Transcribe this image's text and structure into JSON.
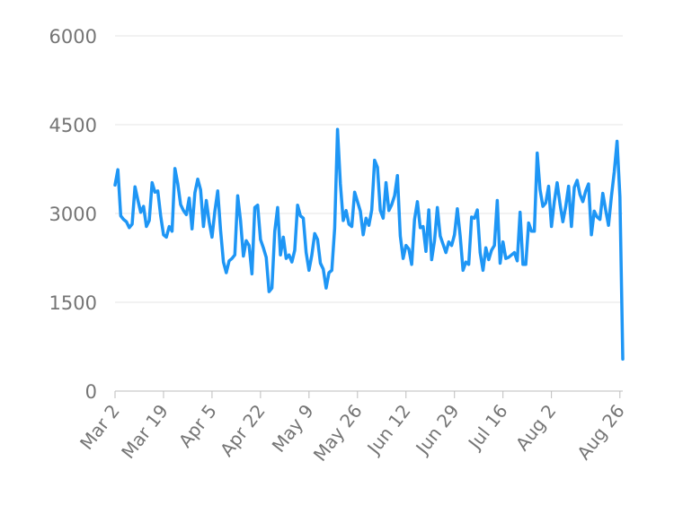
{
  "chart_data": {
    "type": "line",
    "title": "",
    "xlabel": "",
    "ylabel": "",
    "ylim": [
      0,
      6000
    ],
    "grid": true,
    "legend": "none",
    "colors": {
      "line": "#1e96f5",
      "grid": "#e6e6e6",
      "axis": "#bdbdbd",
      "text": "#757575"
    },
    "yticks": [
      0,
      1500,
      3000,
      4500,
      6000
    ],
    "ytick_labels": [
      "0",
      "1500",
      "3000",
      "4500",
      "6000"
    ],
    "xticks": [
      {
        "label": "Mar 2",
        "index": 0
      },
      {
        "label": "Mar 19",
        "index": 17
      },
      {
        "label": "Apr 5",
        "index": 34
      },
      {
        "label": "Apr 22",
        "index": 51
      },
      {
        "label": "May 9",
        "index": 68
      },
      {
        "label": "May 26",
        "index": 85
      },
      {
        "label": "Jun 12",
        "index": 102
      },
      {
        "label": "Jun 29",
        "index": 119
      },
      {
        "label": "Jul 16",
        "index": 136
      },
      {
        "label": "Aug 2",
        "index": 153
      },
      {
        "label": "Aug 26",
        "index": 177
      }
    ],
    "series": [
      {
        "values": [
          3480,
          3740,
          2960,
          2900,
          2860,
          2760,
          2820,
          3450,
          3230,
          3020,
          3120,
          2780,
          2880,
          3520,
          3360,
          3380,
          2960,
          2640,
          2600,
          2780,
          2700,
          3760,
          3500,
          3150,
          3050,
          2980,
          3260,
          2740,
          3350,
          3580,
          3400,
          2780,
          3220,
          2860,
          2600,
          3040,
          3380,
          2720,
          2180,
          2000,
          2200,
          2240,
          2300,
          3300,
          2880,
          2280,
          2540,
          2460,
          1980,
          3100,
          3140,
          2560,
          2420,
          2260,
          1680,
          1740,
          2700,
          3100,
          2300,
          2600,
          2240,
          2300,
          2180,
          2380,
          3140,
          2960,
          2920,
          2340,
          2040,
          2300,
          2660,
          2560,
          2160,
          2060,
          1740,
          2000,
          2040,
          2750,
          4420,
          3500,
          2880,
          3050,
          2820,
          2780,
          3360,
          3200,
          3040,
          2640,
          2920,
          2800,
          3060,
          3900,
          3780,
          3050,
          2920,
          3520,
          3050,
          3150,
          3300,
          3640,
          2620,
          2240,
          2460,
          2400,
          2140,
          2900,
          3200,
          2760,
          2780,
          2360,
          3060,
          2220,
          2540,
          3100,
          2620,
          2480,
          2340,
          2520,
          2460,
          2640,
          3080,
          2620,
          2040,
          2180,
          2140,
          2940,
          2920,
          3060,
          2340,
          2040,
          2420,
          2220,
          2380,
          2460,
          3220,
          2160,
          2520,
          2240,
          2260,
          2300,
          2340,
          2200,
          3020,
          2140,
          2140,
          2840,
          2700,
          2700,
          4020,
          3400,
          3120,
          3180,
          3460,
          2780,
          3200,
          3520,
          3160,
          2860,
          3120,
          3460,
          2780,
          3440,
          3560,
          3320,
          3200,
          3380,
          3500,
          2640,
          3040,
          2940,
          2900,
          3340,
          3060,
          2800,
          3280,
          3700,
          4220,
          3280,
          540
        ]
      }
    ]
  }
}
